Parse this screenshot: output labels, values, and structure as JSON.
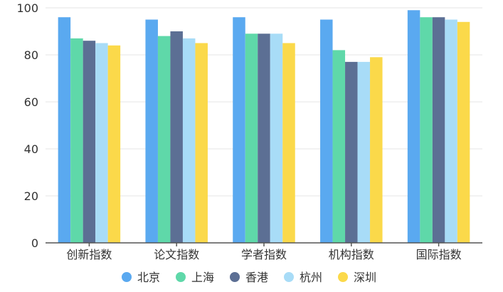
{
  "chart_data": {
    "type": "bar",
    "categories": [
      "创新指数",
      "论文指数",
      "学者指数",
      "机构指数",
      "国际指数"
    ],
    "series": [
      {
        "name": "北京",
        "color": "#5aa9f0",
        "values": [
          96,
          95,
          96,
          95,
          99
        ]
      },
      {
        "name": "上海",
        "color": "#5fd8a9",
        "values": [
          87,
          88,
          89,
          82,
          96
        ]
      },
      {
        "name": "香港",
        "color": "#5c6f94",
        "values": [
          86,
          90,
          89,
          77,
          96
        ]
      },
      {
        "name": "杭州",
        "color": "#a8dcf7",
        "values": [
          85,
          87,
          89,
          77,
          95
        ]
      },
      {
        "name": "深圳",
        "color": "#fbd94a",
        "values": [
          84,
          85,
          85,
          79,
          94
        ]
      }
    ],
    "y_ticks": [
      "0",
      "20",
      "40",
      "60",
      "80",
      "100"
    ],
    "ylim": [
      0,
      100
    ],
    "grid": true,
    "legend_position": "bottom"
  }
}
